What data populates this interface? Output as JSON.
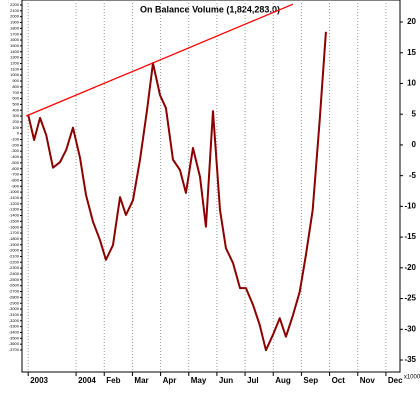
{
  "chart_data": {
    "type": "line",
    "title": "On Balance Volume (1,824,283.0)",
    "y2_unit": "x1000",
    "xlim": [
      -1.92,
      11.5
    ],
    "xticks": [
      {
        "value": -1.7,
        "label": "2003"
      },
      {
        "value": 0,
        "label": "2004"
      },
      {
        "value": 1,
        "label": "Feb"
      },
      {
        "value": 2,
        "label": "Mar"
      },
      {
        "value": 3,
        "label": "Apr"
      },
      {
        "value": 4,
        "label": "May"
      },
      {
        "value": 5,
        "label": "Jun"
      },
      {
        "value": 6,
        "label": "Jul"
      },
      {
        "value": 7,
        "label": "Aug"
      },
      {
        "value": 8,
        "label": "Sep"
      },
      {
        "value": 9,
        "label": "Oct"
      },
      {
        "value": 10,
        "label": "Nov"
      },
      {
        "value": 11,
        "label": "Dec"
      }
    ],
    "ylim": [
      -4076,
      2285
    ],
    "yticks": [
      2200,
      2100,
      2000,
      1900,
      1800,
      1700,
      1600,
      1500,
      1400,
      1300,
      1200,
      1100,
      1000,
      900,
      800,
      700,
      600,
      500,
      400,
      300,
      200,
      100,
      0,
      -100,
      -200,
      -300,
      -400,
      -500,
      -600,
      -700,
      -800,
      -900,
      -1000,
      -1100,
      -1200,
      -1300,
      -1400,
      -1500,
      -1600,
      -1700,
      -1800,
      -1900,
      -2000,
      -2100,
      -2200,
      -2300,
      -2400,
      -2500,
      -2600,
      -2700,
      -2800,
      -2900,
      -3000,
      -3100,
      -3200,
      -3300,
      -3400,
      -3500,
      -3600,
      -3700
    ],
    "y2lim": [
      -36.95,
      23.58
    ],
    "y2ticks": [
      20,
      15,
      10,
      5,
      0,
      -5,
      -10,
      -15,
      -20,
      -25,
      -30,
      -35
    ],
    "grid": true,
    "series": [
      {
        "color": "#8b0000",
        "axis": "y2",
        "x": [
          -1.7,
          -1.49,
          -1.28,
          -1.06,
          -0.82,
          -0.57,
          -0.35,
          -0.11,
          0.14,
          0.35,
          0.6,
          0.85,
          1.06,
          1.31,
          1.56,
          1.77,
          2.02,
          2.27,
          2.52,
          2.73,
          2.98,
          3.19,
          3.44,
          3.69,
          3.9,
          4.15,
          4.4,
          4.61,
          4.86,
          5.11,
          5.32,
          5.57,
          5.82,
          6.03,
          6.28,
          6.52,
          6.74,
          6.99,
          7.23,
          7.45,
          7.7,
          7.94,
          8.16,
          8.4,
          8.65,
          8.87
        ],
        "values": [
          4.9,
          0.8,
          4.4,
          1.6,
          -3.7,
          -2.8,
          -0.8,
          2.8,
          -2.1,
          -8.1,
          -12.5,
          -15.5,
          -18.7,
          -16.3,
          -8.5,
          -11.4,
          -9,
          -2.4,
          5.7,
          13.3,
          8.1,
          6,
          -2.4,
          -4.1,
          -7.8,
          -0.5,
          -5.2,
          -13.3,
          5.5,
          -10.6,
          -16.8,
          -19.2,
          -23.3,
          -23.3,
          -26,
          -29.3,
          -33.4,
          -30.9,
          -28.2,
          -31.2,
          -27.7,
          -23.9,
          -17.9,
          -10.6,
          4.1,
          18.4
        ]
      },
      {
        "color": "#ff0000",
        "axis": "y2",
        "x": [
          -1.77,
          7.7
        ],
        "values": [
          4.7,
          22.9
        ]
      }
    ]
  }
}
